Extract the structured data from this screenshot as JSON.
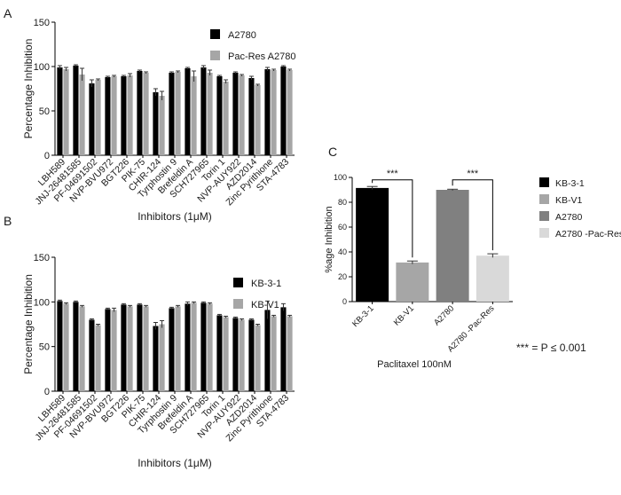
{
  "panel_labels": [
    "A",
    "B",
    "C"
  ],
  "footnote": "*** = P ≤ 0.001",
  "chart_data": [
    {
      "id": "A",
      "type": "bar",
      "ylabel": "Percentage Inhibition",
      "xlabel": "Inhibitors (1μM)",
      "ylim": [
        0,
        150
      ],
      "yticks": [
        0,
        50,
        100,
        150
      ],
      "legend": "top-right",
      "categories": [
        "LBH589",
        "JNJ-26481585",
        "PF-04691502",
        "NVP-BVU972",
        "BGT226",
        "PIK-75",
        "CHIR-124",
        "Tyrphostin 9",
        "Brefeldin A",
        "SCH727965",
        "Torin 1",
        "NVP-AUY922",
        "AZD2014",
        "Zinc Pyrithione",
        "STA-4783"
      ],
      "series": [
        {
          "name": "A2780",
          "color": "#000000",
          "values": [
            99,
            101,
            81,
            88,
            89,
            95,
            71,
            93,
            98,
            99,
            89,
            93,
            87,
            97,
            100
          ],
          "errors": [
            2,
            1,
            4,
            1,
            1,
            1,
            4,
            1,
            1,
            2,
            1,
            1,
            2,
            2,
            1
          ]
        },
        {
          "name": "Pac-Res A2780",
          "color": "#a6a6a6",
          "values": [
            97,
            91,
            85,
            89,
            90,
            93,
            67,
            94,
            89,
            93,
            83,
            90,
            79,
            96,
            96
          ],
          "errors": [
            2,
            7,
            1,
            1,
            2,
            1,
            5,
            1,
            6,
            3,
            2,
            1,
            1,
            1,
            1
          ]
        }
      ]
    },
    {
      "id": "B",
      "type": "bar",
      "ylabel": "Percentage Inhibition",
      "xlabel": "Inhibitors (1μM)",
      "ylim": [
        0,
        150
      ],
      "yticks": [
        0,
        50,
        100,
        150
      ],
      "legend": "top-right",
      "categories": [
        "LBH589",
        "JNJ-26481585",
        "PF-04691502",
        "NVP-BVU972",
        "BGT226",
        "PIK-75",
        "CHIR-124",
        "Tyrphostin 9",
        "Brefeldin A",
        "SCH727965",
        "Torin 1",
        "NVP-AUY922",
        "AZD2014",
        "Zinc Pyrithione",
        "STA-4783"
      ],
      "series": [
        {
          "name": "KB-3-1",
          "color": "#000000",
          "values": [
            101,
            100,
            80,
            92,
            97,
            97,
            73,
            93,
            98,
            99,
            85,
            82,
            80,
            91,
            94
          ],
          "errors": [
            1,
            1,
            1,
            1,
            1,
            1,
            4,
            1,
            2,
            1,
            1,
            1,
            1,
            10,
            4
          ]
        },
        {
          "name": "KB-V1",
          "color": "#a6a6a6",
          "values": [
            98,
            95,
            74,
            91,
            95,
            95,
            75,
            95,
            99,
            98,
            83,
            80,
            74,
            84,
            84
          ],
          "errors": [
            1,
            1,
            1,
            2,
            1,
            1,
            4,
            1,
            1,
            1,
            1,
            1,
            1,
            1,
            1
          ]
        }
      ]
    },
    {
      "id": "C",
      "type": "bar",
      "ylabel": "%age Inhibition",
      "xlabel": "Paclitaxel 100nM",
      "ylim": [
        0,
        100
      ],
      "yticks": [
        0,
        20,
        40,
        60,
        80,
        100
      ],
      "legend": "right",
      "categories": [
        "KB-3-1",
        "KB-V1",
        "A2780",
        "A2780 -Pac-Res"
      ],
      "values": [
        91.5,
        31.5,
        90,
        37
      ],
      "errors": [
        1.2,
        1.2,
        0.5,
        1.5
      ],
      "colors": [
        "#000000",
        "#a6a6a6",
        "#808080",
        "#d9d9d9"
      ],
      "significance": [
        {
          "from": 0,
          "to": 1,
          "label": "***",
          "y": 98
        },
        {
          "from": 2,
          "to": 3,
          "label": "***",
          "y": 98
        }
      ]
    }
  ]
}
